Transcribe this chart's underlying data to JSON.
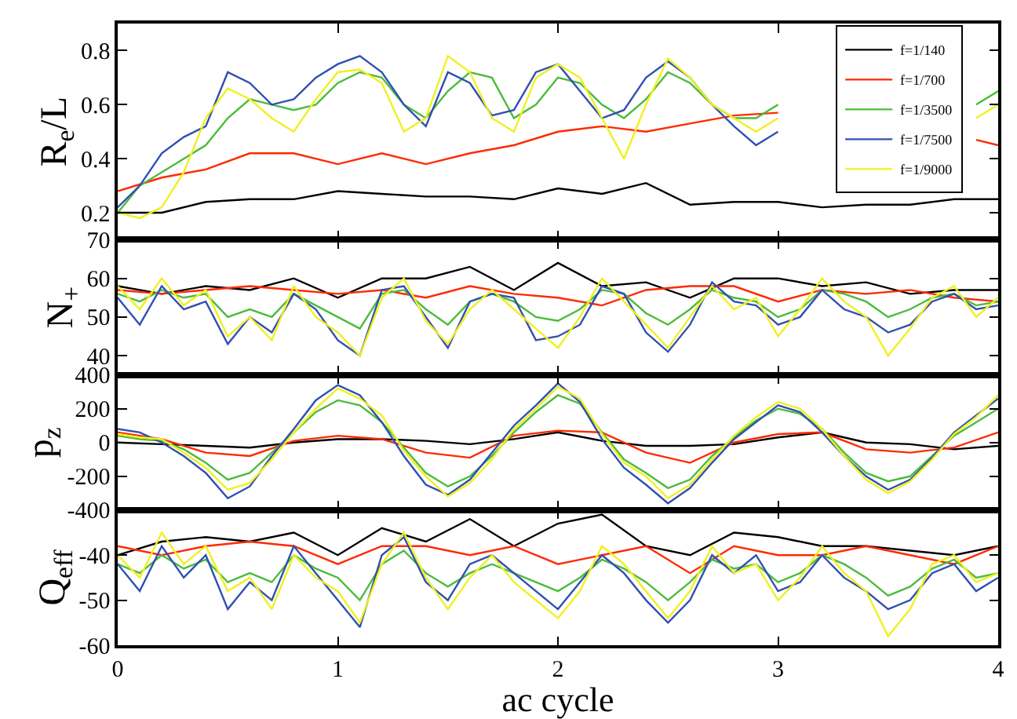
{
  "chart_data": [
    {
      "type": "line",
      "ylabel": "R$_{e}$/L",
      "xlim": [
        0,
        4
      ],
      "xticks": [
        0,
        1,
        2,
        3,
        4
      ],
      "ylim": [
        0.1,
        0.9
      ],
      "yticks": [
        0.2,
        0.4,
        0.6,
        0.8
      ],
      "tick_labels": "y",
      "legend": "top right",
      "x": [
        0,
        0.1,
        0.2,
        0.3,
        0.4,
        0.5,
        0.6,
        0.7,
        0.8,
        0.9,
        1,
        1.1,
        1.2,
        1.3,
        1.4,
        1.5,
        1.6,
        1.7,
        1.8,
        1.9,
        2,
        2.1,
        2.2,
        2.3,
        2.4,
        2.5,
        2.6,
        2.7,
        2.8,
        2.9,
        3,
        3.1,
        3.2,
        3.3,
        3.4,
        3.5,
        3.6,
        3.7,
        3.8,
        3.9,
        4
      ],
      "series": [
        {
          "name": "f=1/140",
          "color": "#000000",
          "x": [
            0,
            0.2,
            0.4,
            0.6,
            0.8,
            1,
            1.2,
            1.4,
            1.6,
            1.8,
            2,
            2.2,
            2.4,
            2.6,
            2.8,
            3,
            3.2,
            3.4,
            3.6,
            3.8,
            4
          ],
          "values": [
            0.2,
            0.2,
            0.24,
            0.25,
            0.25,
            0.28,
            0.27,
            0.26,
            0.26,
            0.25,
            0.29,
            0.27,
            0.31,
            0.23,
            0.24,
            0.24,
            0.22,
            0.23,
            0.23,
            0.25,
            0.25
          ]
        },
        {
          "name": "f=1/700",
          "color": "#ff2a00",
          "x": [
            0,
            0.2,
            0.4,
            0.6,
            0.8,
            1,
            1.2,
            1.4,
            1.6,
            1.8,
            2,
            2.2,
            2.4,
            2.6,
            2.8,
            3,
            3.2,
            3.4,
            3.6,
            3.9,
            4
          ],
          "values": [
            0.28,
            0.33,
            0.36,
            0.42,
            0.42,
            0.38,
            0.42,
            0.38,
            0.42,
            0.45,
            0.5,
            0.52,
            0.5,
            0.53,
            0.56,
            0.57,
            null,
            null,
            null,
            0.47,
            0.45
          ]
        },
        {
          "name": "f=1/3500",
          "color": "#4cbb3c",
          "values": [
            0.2,
            0.3,
            0.35,
            0.4,
            0.45,
            0.55,
            0.62,
            0.6,
            0.58,
            0.6,
            0.68,
            0.72,
            0.7,
            0.6,
            0.55,
            0.65,
            0.72,
            0.7,
            0.55,
            0.6,
            0.7,
            0.68,
            0.6,
            0.55,
            0.62,
            0.72,
            0.68,
            0.6,
            0.55,
            0.55,
            0.6,
            null,
            null,
            null,
            null,
            null,
            null,
            null,
            null,
            0.6,
            0.65
          ]
        },
        {
          "name": "f=1/7500",
          "color": "#3050b0",
          "values": [
            0.22,
            0.3,
            0.42,
            0.48,
            0.52,
            0.72,
            0.68,
            0.6,
            0.62,
            0.7,
            0.75,
            0.78,
            0.72,
            0.6,
            0.52,
            0.72,
            0.68,
            0.56,
            0.58,
            0.72,
            0.75,
            0.65,
            0.55,
            0.58,
            0.7,
            0.76,
            0.7,
            0.6,
            0.52,
            0.45,
            0.5,
            null,
            null,
            null,
            null,
            null,
            null,
            null,
            null,
            null,
            null
          ]
        },
        {
          "name": "f=1/9000",
          "color": "#f0f020",
          "values": [
            0.2,
            0.18,
            0.22,
            0.35,
            0.55,
            0.66,
            0.62,
            0.55,
            0.5,
            0.62,
            0.72,
            0.73,
            0.68,
            0.5,
            0.55,
            0.78,
            0.72,
            0.55,
            0.5,
            0.7,
            0.75,
            0.7,
            0.55,
            0.4,
            0.6,
            0.77,
            0.7,
            0.6,
            0.55,
            0.5,
            0.55,
            null,
            null,
            null,
            null,
            null,
            null,
            null,
            null,
            0.55,
            0.6
          ]
        }
      ]
    },
    {
      "type": "line",
      "ylabel": "N$_{+}$",
      "xlim": [
        0,
        4
      ],
      "xticks": [
        0,
        1,
        2,
        3,
        4
      ],
      "ylim": [
        35,
        70
      ],
      "yticks": [
        40,
        50,
        60,
        70
      ],
      "tick_labels": "y",
      "x": [
        0,
        0.1,
        0.2,
        0.3,
        0.4,
        0.5,
        0.6,
        0.7,
        0.8,
        0.9,
        1,
        1.1,
        1.2,
        1.3,
        1.4,
        1.5,
        1.6,
        1.7,
        1.8,
        1.9,
        2,
        2.1,
        2.2,
        2.3,
        2.4,
        2.5,
        2.6,
        2.7,
        2.8,
        2.9,
        3,
        3.1,
        3.2,
        3.3,
        3.4,
        3.5,
        3.6,
        3.7,
        3.8,
        3.9,
        4
      ],
      "series": [
        {
          "color": "#000000",
          "x": [
            0,
            0.2,
            0.4,
            0.6,
            0.8,
            1,
            1.2,
            1.4,
            1.6,
            1.8,
            2,
            2.2,
            2.4,
            2.6,
            2.8,
            3,
            3.2,
            3.4,
            3.6,
            3.8,
            4
          ],
          "values": [
            58,
            56,
            58,
            57,
            60,
            55,
            60,
            60,
            63,
            57,
            64,
            58,
            59,
            55,
            60,
            60,
            58,
            59,
            56,
            57,
            57
          ]
        },
        {
          "color": "#ff2a00",
          "x": [
            0,
            0.2,
            0.4,
            0.6,
            0.8,
            1,
            1.2,
            1.4,
            1.6,
            1.8,
            2,
            2.2,
            2.4,
            2.6,
            2.8,
            3,
            3.2,
            3.4,
            3.6,
            3.8,
            4
          ],
          "values": [
            57,
            56,
            57,
            58,
            57,
            56,
            57,
            55,
            58,
            56,
            55,
            53,
            57,
            58,
            58,
            54,
            57,
            56,
            57,
            55,
            54
          ]
        },
        {
          "color": "#4cbb3c",
          "values": [
            56,
            54,
            57,
            55,
            56,
            50,
            52,
            50,
            56,
            53,
            50,
            47,
            56,
            57,
            52,
            48,
            54,
            56,
            54,
            50,
            49,
            52,
            57,
            56,
            51,
            48,
            52,
            57,
            55,
            54,
            50,
            52,
            57,
            56,
            54,
            50,
            52,
            55,
            56,
            53,
            54
          ]
        },
        {
          "color": "#3050b0",
          "values": [
            55,
            48,
            58,
            52,
            54,
            43,
            50,
            46,
            56,
            52,
            44,
            40,
            57,
            58,
            50,
            42,
            54,
            56,
            55,
            44,
            45,
            48,
            58,
            56,
            46,
            41,
            48,
            59,
            54,
            53,
            48,
            50,
            57,
            52,
            50,
            46,
            48,
            54,
            56,
            52,
            53
          ]
        },
        {
          "color": "#f0f020",
          "values": [
            58,
            52,
            60,
            53,
            57,
            45,
            50,
            44,
            58,
            50,
            46,
            40,
            55,
            60,
            49,
            43,
            52,
            57,
            52,
            47,
            42,
            50,
            60,
            54,
            48,
            42,
            50,
            58,
            52,
            55,
            45,
            52,
            60,
            54,
            50,
            40,
            47,
            55,
            58,
            50,
            55
          ]
        }
      ]
    },
    {
      "type": "line",
      "ylabel": "p$_{z}$",
      "xlim": [
        0,
        4
      ],
      "xticks": [
        0,
        1,
        2,
        3,
        4
      ],
      "ylim": [
        -400,
        400
      ],
      "yticks": [
        -400,
        -200,
        0,
        200,
        400
      ],
      "tick_labels": "y",
      "x": [
        0,
        0.1,
        0.2,
        0.3,
        0.4,
        0.5,
        0.6,
        0.7,
        0.8,
        0.9,
        1,
        1.1,
        1.2,
        1.3,
        1.4,
        1.5,
        1.6,
        1.7,
        1.8,
        1.9,
        2,
        2.1,
        2.2,
        2.3,
        2.4,
        2.5,
        2.6,
        2.7,
        2.8,
        2.9,
        3,
        3.1,
        3.2,
        3.3,
        3.4,
        3.5,
        3.6,
        3.7,
        3.8,
        3.9,
        4
      ],
      "series": [
        {
          "color": "#000000",
          "x": [
            0,
            0.2,
            0.4,
            0.6,
            0.8,
            1,
            1.2,
            1.4,
            1.6,
            1.8,
            2,
            2.2,
            2.4,
            2.6,
            2.8,
            3,
            3.2,
            3.4,
            3.6,
            3.8,
            4
          ],
          "values": [
            0,
            -10,
            -20,
            -30,
            0,
            20,
            20,
            10,
            -10,
            20,
            60,
            10,
            -20,
            -20,
            -10,
            30,
            60,
            0,
            -10,
            -40,
            -20
          ]
        },
        {
          "color": "#ff2a00",
          "x": [
            0,
            0.2,
            0.4,
            0.6,
            0.8,
            1,
            1.2,
            1.4,
            1.6,
            1.8,
            2,
            2.2,
            2.4,
            2.6,
            2.8,
            3,
            3.2,
            3.4,
            3.6,
            3.8,
            4
          ],
          "values": [
            60,
            20,
            -60,
            -80,
            10,
            40,
            20,
            -60,
            -90,
            40,
            70,
            60,
            -60,
            -120,
            0,
            50,
            60,
            -40,
            -60,
            -30,
            60
          ]
        },
        {
          "color": "#4cbb3c",
          "values": [
            40,
            20,
            10,
            -40,
            -120,
            -220,
            -180,
            -60,
            60,
            180,
            250,
            220,
            120,
            -30,
            -180,
            -260,
            -200,
            -80,
            60,
            180,
            280,
            230,
            60,
            -100,
            -180,
            -270,
            -220,
            -80,
            30,
            130,
            200,
            170,
            80,
            -60,
            -180,
            -230,
            -200,
            -80,
            40,
            120,
            200
          ]
        },
        {
          "color": "#3050b0",
          "values": [
            80,
            60,
            0,
            -80,
            -180,
            -330,
            -260,
            -80,
            80,
            250,
            340,
            280,
            120,
            -80,
            -250,
            -310,
            -220,
            -60,
            100,
            220,
            350,
            240,
            20,
            -150,
            -250,
            -360,
            -270,
            -120,
            20,
            120,
            220,
            180,
            60,
            -80,
            -200,
            -280,
            -220,
            -90,
            60,
            160,
            260
          ]
        },
        {
          "color": "#f0f020",
          "values": [
            50,
            30,
            20,
            -60,
            -150,
            -280,
            -240,
            -100,
            60,
            200,
            320,
            260,
            160,
            -50,
            -200,
            -320,
            -240,
            -100,
            80,
            200,
            330,
            260,
            50,
            -120,
            -200,
            -330,
            -250,
            -100,
            40,
            150,
            240,
            200,
            80,
            -80,
            -220,
            -300,
            -230,
            -100,
            50,
            150,
            280
          ]
        }
      ]
    },
    {
      "type": "line",
      "ylabel": "Q$_{eff}$",
      "xlabel": "ac cycle",
      "xlim": [
        0,
        4
      ],
      "xticks": [
        0,
        1,
        2,
        3,
        4
      ],
      "ylim": [
        -60,
        -30
      ],
      "yticks": [
        -60,
        -50,
        -40
      ],
      "x": [
        0,
        0.1,
        0.2,
        0.3,
        0.4,
        0.5,
        0.6,
        0.7,
        0.8,
        0.9,
        1,
        1.1,
        1.2,
        1.3,
        1.4,
        1.5,
        1.6,
        1.7,
        1.8,
        1.9,
        2,
        2.1,
        2.2,
        2.3,
        2.4,
        2.5,
        2.6,
        2.7,
        2.8,
        2.9,
        3,
        3.1,
        3.2,
        3.3,
        3.4,
        3.5,
        3.6,
        3.7,
        3.8,
        3.9,
        4
      ],
      "series": [
        {
          "color": "#000000",
          "x": [
            0,
            0.2,
            0.4,
            0.6,
            0.8,
            1,
            1.2,
            1.4,
            1.6,
            1.8,
            2,
            2.2,
            2.4,
            2.6,
            2.8,
            3,
            3.2,
            3.4,
            3.6,
            3.8,
            4
          ],
          "values": [
            -40,
            -37,
            -36,
            -37,
            -35,
            -40,
            -34,
            -37,
            -32,
            -38,
            -33,
            -31,
            -38,
            -40,
            -35,
            -36,
            -38,
            -38,
            -39,
            -40,
            -38
          ]
        },
        {
          "color": "#ff2a00",
          "x": [
            0,
            0.2,
            0.4,
            0.6,
            0.8,
            1,
            1.2,
            1.4,
            1.6,
            1.8,
            2,
            2.2,
            2.4,
            2.6,
            2.8,
            3,
            3.2,
            3.4,
            3.6,
            3.8,
            4
          ],
          "values": [
            -38,
            -40,
            -38,
            -37,
            -38,
            -42,
            -38,
            -38,
            -40,
            -38,
            -42,
            -40,
            -38,
            -44,
            -38,
            -40,
            -40,
            -38,
            -40,
            -42,
            -38
          ]
        },
        {
          "color": "#4cbb3c",
          "values": [
            -42,
            -44,
            -40,
            -43,
            -41,
            -46,
            -44,
            -46,
            -40,
            -43,
            -45,
            -50,
            -42,
            -39,
            -44,
            -47,
            -44,
            -42,
            -44,
            -46,
            -48,
            -45,
            -41,
            -43,
            -46,
            -50,
            -46,
            -41,
            -43,
            -42,
            -46,
            -44,
            -40,
            -42,
            -45,
            -49,
            -47,
            -43,
            -41,
            -45,
            -44
          ]
        },
        {
          "color": "#3050b0",
          "values": [
            -42,
            -48,
            -38,
            -45,
            -40,
            -52,
            -46,
            -50,
            -38,
            -44,
            -50,
            -56,
            -40,
            -36,
            -46,
            -50,
            -42,
            -40,
            -44,
            -48,
            -52,
            -46,
            -40,
            -44,
            -50,
            -55,
            -50,
            -40,
            -44,
            -40,
            -48,
            -46,
            -40,
            -45,
            -48,
            -52,
            -50,
            -44,
            -42,
            -48,
            -45
          ]
        },
        {
          "color": "#f0f020",
          "values": [
            -40,
            -45,
            -35,
            -42,
            -38,
            -48,
            -45,
            -52,
            -40,
            -45,
            -48,
            -55,
            -42,
            -35,
            -45,
            -52,
            -45,
            -40,
            -46,
            -50,
            -54,
            -48,
            -38,
            -42,
            -48,
            -54,
            -48,
            -38,
            -44,
            -42,
            -50,
            -45,
            -38,
            -44,
            -48,
            -58,
            -52,
            -42,
            -40,
            -46,
            -44
          ]
        }
      ]
    }
  ]
}
